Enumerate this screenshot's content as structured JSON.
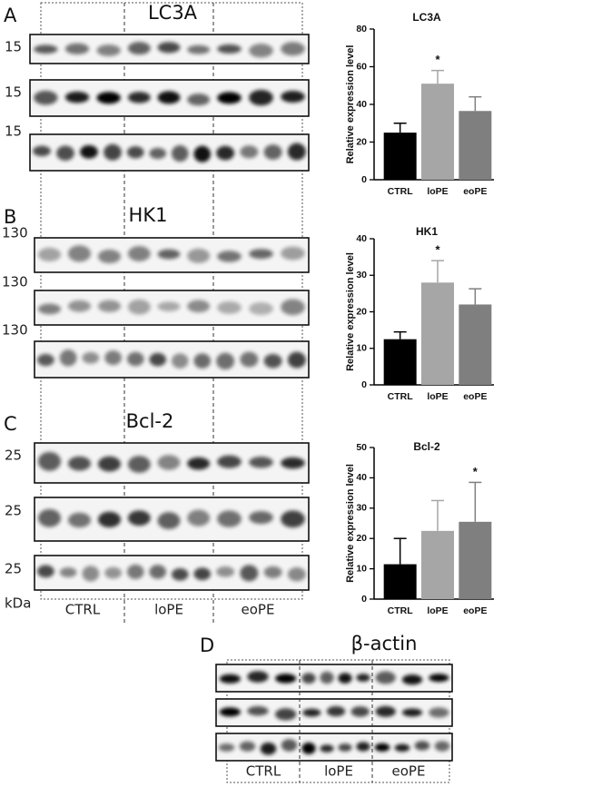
{
  "chart_data": [
    {
      "type": "bar",
      "title": "LC3A",
      "ylabel": "Relative expression level",
      "categories": [
        "CTRL",
        "loPE",
        "eoPE"
      ],
      "values": [
        25,
        51,
        36.5
      ],
      "errors": [
        5,
        7,
        7.5
      ],
      "colors": [
        "#000000",
        "#a6a6a6",
        "#7f7f7f"
      ],
      "significance": [
        null,
        "*",
        null
      ],
      "ylim": [
        0,
        80
      ],
      "yticks": [
        0,
        20,
        40,
        60,
        80
      ]
    },
    {
      "type": "bar",
      "title": "HK1",
      "ylabel": "Relative expression level",
      "categories": [
        "CTRL",
        "loPE",
        "eoPE"
      ],
      "values": [
        12.5,
        28,
        22
      ],
      "errors": [
        2,
        6,
        4.3
      ],
      "colors": [
        "#000000",
        "#a6a6a6",
        "#7f7f7f"
      ],
      "significance": [
        null,
        "*",
        null
      ],
      "ylim": [
        0,
        40
      ],
      "yticks": [
        0,
        10,
        20,
        30,
        40
      ]
    },
    {
      "type": "bar",
      "title": "Bcl-2",
      "ylabel": "Relative expression level",
      "categories": [
        "CTRL",
        "loPE",
        "eoPE"
      ],
      "values": [
        11.5,
        22.5,
        25.5
      ],
      "errors": [
        8.5,
        10,
        13
      ],
      "colors": [
        "#000000",
        "#a6a6a6",
        "#7f7f7f"
      ],
      "significance": [
        null,
        null,
        "*"
      ],
      "ylim": [
        0,
        50
      ],
      "yticks": [
        0,
        10,
        20,
        30,
        40,
        50
      ]
    }
  ],
  "blots": {
    "kda": "kDa",
    "groups": [
      "CTRL",
      "loPE",
      "eoPE"
    ],
    "panels": [
      {
        "letter": "A",
        "title": "LC3A",
        "mw": [
          "15",
          "15",
          "15"
        ]
      },
      {
        "letter": "B",
        "title": "HK1",
        "mw": [
          "130",
          "130",
          "130"
        ]
      },
      {
        "letter": "C",
        "title": "Bcl-2",
        "mw": [
          "25",
          "25",
          "25"
        ]
      }
    ]
  },
  "actin": {
    "letter": "D",
    "title": "β-actin",
    "groups": [
      "CTRL",
      "loPE",
      "eoPE"
    ]
  }
}
